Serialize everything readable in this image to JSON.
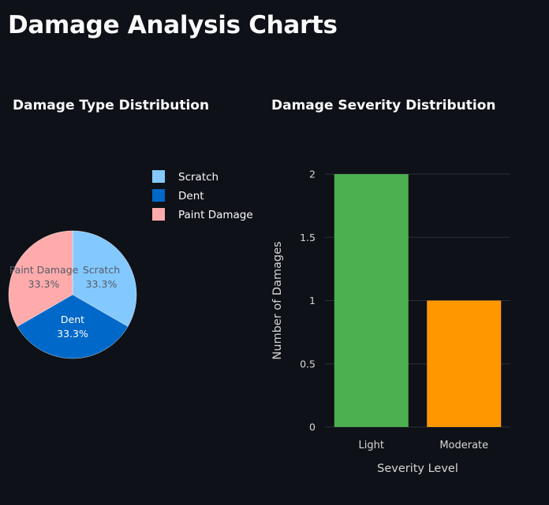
{
  "page": {
    "title": "Damage Analysis Charts"
  },
  "colors": {
    "background": "#0e1117",
    "text": "#fafafa",
    "axis_text": "#d6d6d6",
    "grid": "#2b2f38",
    "pie_text_light": "#ffffff",
    "pie_text_dark": "#555b66"
  },
  "chart_data": [
    {
      "type": "pie",
      "title": "Damage Type Distribution",
      "labels": [
        "Scratch",
        "Dent",
        "Paint Damage"
      ],
      "values": [
        1,
        1,
        1
      ],
      "percent_labels": [
        "33.3%",
        "33.3%",
        "33.3%"
      ],
      "colors": [
        "#83c9ff",
        "#0068c9",
        "#ffabab"
      ],
      "legend": {
        "placement": "top-right",
        "entries": [
          "Scratch",
          "Dent",
          "Paint Damage"
        ]
      },
      "text_info": "label+percent"
    },
    {
      "type": "bar",
      "title": "Damage Severity Distribution",
      "categories": [
        "Light",
        "Moderate"
      ],
      "values": [
        2,
        1
      ],
      "colors": [
        "#4caf50",
        "#ff9800"
      ],
      "xlabel": "Severity Level",
      "ylabel": "Number of Damages",
      "ylim": [
        0,
        2
      ],
      "yticks": [
        0,
        0.5,
        1,
        1.5,
        2
      ],
      "ytick_labels": [
        "0",
        "0.5",
        "1",
        "1.5",
        "2"
      ],
      "grid": true
    }
  ]
}
